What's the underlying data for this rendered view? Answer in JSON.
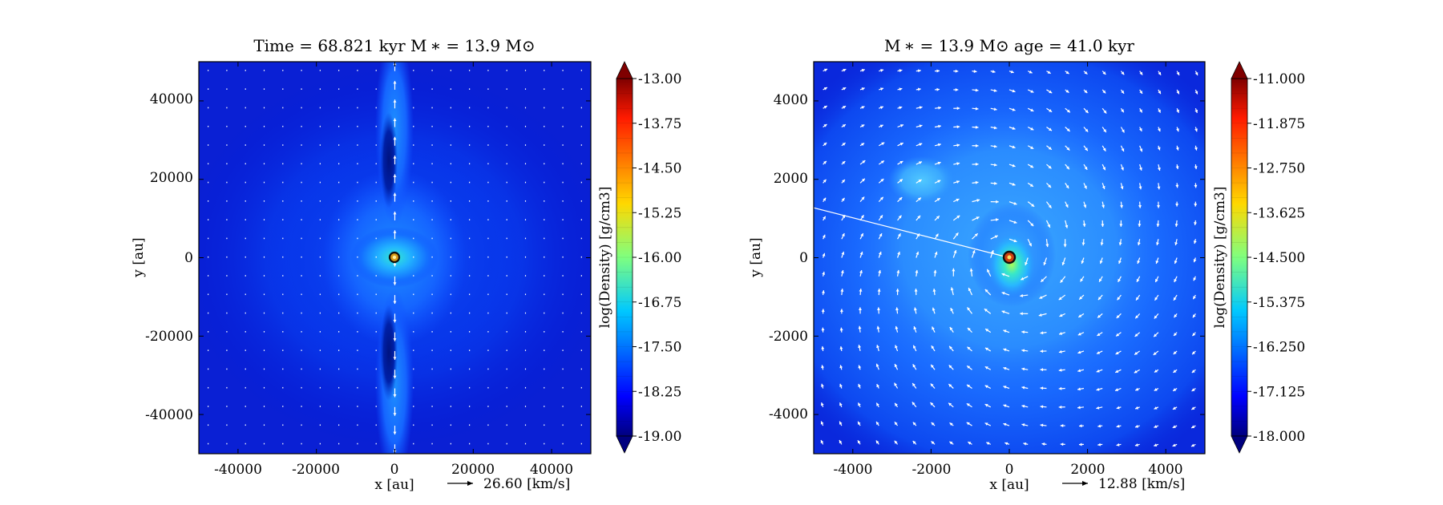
{
  "chart_data": [
    {
      "type": "heatmap",
      "panel": "left",
      "title": "Time = 68.821 kyr    M ∗ = 13.9 M⊙",
      "xlabel": "x [au]",
      "ylabel": "y [au]",
      "xlim": [
        -50000,
        50000
      ],
      "ylim": [
        -50000,
        50000
      ],
      "xticks": [
        -40000,
        -20000,
        0,
        20000,
        40000
      ],
      "xtick_labels": [
        "-40000",
        "-20000",
        "0",
        "20000",
        "40000"
      ],
      "yticks": [
        40000,
        20000,
        0,
        -20000,
        -40000
      ],
      "ytick_labels": [
        "40000",
        "20000",
        "0",
        "-20000",
        "-40000"
      ],
      "quiver_key": "26.60 [km/s]",
      "colorbar": {
        "label": "log(Density) [g/cm3]",
        "min": -19.0,
        "max": -13.0,
        "ticks": [
          -13.0,
          -13.75,
          -14.5,
          -15.25,
          -16.0,
          -16.75,
          -17.5,
          -18.25,
          -19.0
        ],
        "tick_labels": [
          "-13.00",
          "-13.75",
          "-14.50",
          "-15.25",
          "-16.00",
          "-16.75",
          "-17.50",
          "-18.25",
          "-19.00"
        ],
        "extend": "both"
      },
      "features": {
        "background_log_density": -18.4,
        "star_position": [
          0,
          0
        ],
        "outflow_axis": "vertical",
        "central_log_density": -16.3
      }
    },
    {
      "type": "heatmap",
      "panel": "right",
      "title": "M ∗ = 13.9 M⊙           age = 41.0 kyr",
      "xlabel": "x [au]",
      "ylabel": "y [au]",
      "xlim": [
        -5000,
        5000
      ],
      "ylim": [
        -5000,
        5000
      ],
      "xticks": [
        -4000,
        -2000,
        0,
        2000,
        4000
      ],
      "xtick_labels": [
        "-4000",
        "-2000",
        "0",
        "2000",
        "4000"
      ],
      "yticks": [
        4000,
        2000,
        0,
        -2000,
        -4000
      ],
      "ytick_labels": [
        "4000",
        "2000",
        "0",
        "-2000",
        "-4000"
      ],
      "quiver_key": "12.88 [km/s]",
      "colorbar": {
        "label": "log(Density) [g/cm3]",
        "min": -18.0,
        "max": -11.0,
        "ticks": [
          -11.0,
          -11.875,
          -12.75,
          -13.625,
          -14.5,
          -15.375,
          -16.25,
          -17.125,
          -18.0
        ],
        "tick_labels": [
          "-11.000",
          "-11.875",
          "-12.750",
          "-13.625",
          "-14.500",
          "-15.375",
          "-16.250",
          "-17.125",
          "-18.000"
        ],
        "extend": "both"
      },
      "features": {
        "background_log_density": -17.4,
        "star_position": [
          0,
          0
        ],
        "clump_position": [
          -2200,
          1800
        ],
        "central_log_density": -14.8
      }
    }
  ]
}
